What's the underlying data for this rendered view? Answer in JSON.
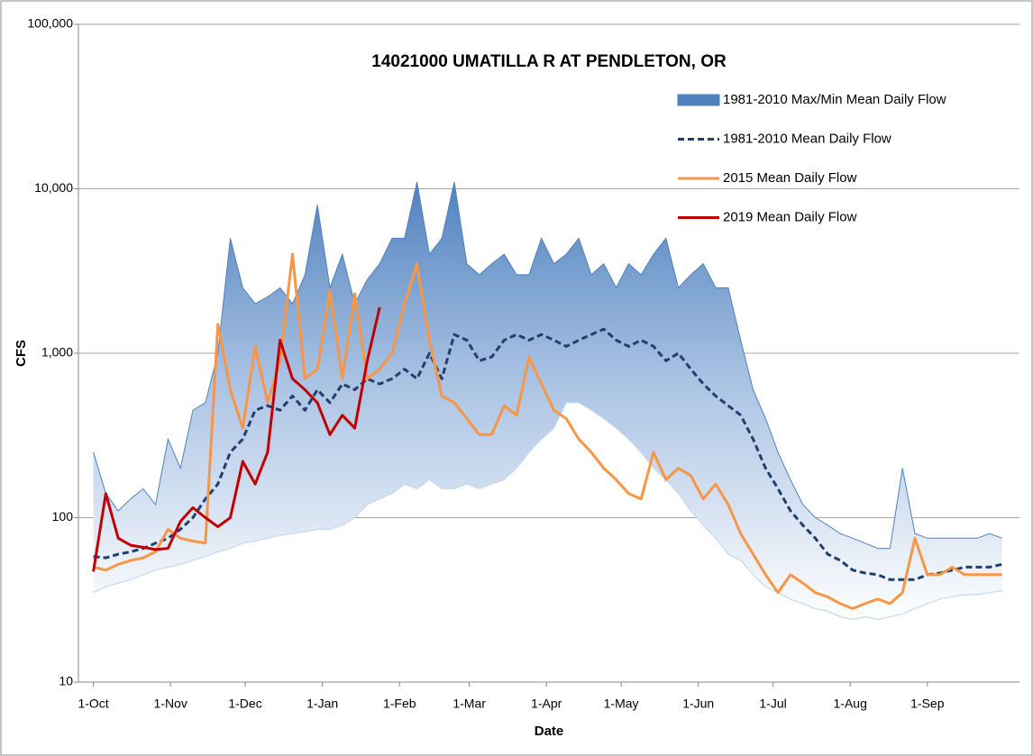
{
  "chart_data": {
    "type": "line",
    "title": "14021000 UMATILLA R AT PENDLETON, OR",
    "x_label": "Date",
    "y_label": "CFS",
    "log_scale": true,
    "grid": true,
    "legend": "upper right",
    "x": [
      0,
      5,
      10,
      15,
      20,
      25,
      30,
      35,
      40,
      45,
      50,
      55,
      60,
      65,
      70,
      75,
      80,
      85,
      90,
      95,
      100,
      105,
      110,
      115,
      120,
      125,
      130,
      135,
      140,
      145,
      150,
      155,
      160,
      165,
      170,
      175,
      180,
      185,
      190,
      195,
      200,
      205,
      210,
      215,
      220,
      225,
      230,
      235,
      240,
      245,
      250,
      255,
      260,
      265,
      270,
      275,
      280,
      285,
      290,
      295,
      300,
      305,
      310,
      315,
      320,
      325,
      330,
      335,
      340,
      345,
      350,
      355,
      360,
      365
    ],
    "xlim": [
      -6,
      372
    ],
    "xticks": [
      {
        "value": 0,
        "label": "1-Oct"
      },
      {
        "value": 31,
        "label": "1-Nov"
      },
      {
        "value": 61,
        "label": "1-Dec"
      },
      {
        "value": 92,
        "label": "1-Jan"
      },
      {
        "value": 123,
        "label": "1-Feb"
      },
      {
        "value": 151,
        "label": "1-Mar"
      },
      {
        "value": 182,
        "label": "1-Apr"
      },
      {
        "value": 212,
        "label": "1-May"
      },
      {
        "value": 243,
        "label": "1-Jun"
      },
      {
        "value": 273,
        "label": "1-Jul"
      },
      {
        "value": 304,
        "label": "1-Aug"
      },
      {
        "value": 335,
        "label": "1-Sep"
      }
    ],
    "ylim": [
      10,
      100000
    ],
    "yticks": [
      10,
      100,
      {
        "value": 1000,
        "label": "1,000"
      },
      {
        "value": 10000,
        "label": "10,000"
      },
      {
        "value": 100000,
        "label": "100,000"
      }
    ],
    "series": [
      {
        "name": "1981-2010 Max/Min Mean Daily Flow",
        "color": "#4f81bd",
        "style": "band",
        "values": [
          250,
          140,
          110,
          130,
          150,
          120,
          300,
          200,
          450,
          500,
          1000,
          5000,
          2500,
          2000,
          2200,
          2500,
          2000,
          3000,
          8000,
          2500,
          4000,
          2000,
          2800,
          3500,
          5000,
          5000,
          11000,
          4000,
          5000,
          11000,
          3500,
          3000,
          3500,
          4000,
          3000,
          3000,
          5000,
          3500,
          4000,
          5000,
          3000,
          3500,
          2500,
          3500,
          3000,
          4000,
          5000,
          2500,
          3000,
          3500,
          2500,
          2500,
          1200,
          600,
          400,
          250,
          170,
          120,
          100,
          90,
          80,
          75,
          70,
          65,
          65,
          200,
          80,
          75,
          75,
          75,
          75,
          75,
          80,
          75
        ],
        "min": [
          35,
          38,
          40,
          42,
          45,
          48,
          50,
          52,
          55,
          58,
          62,
          65,
          70,
          72,
          75,
          78,
          80,
          82,
          85,
          85,
          90,
          100,
          120,
          130,
          140,
          160,
          150,
          170,
          150,
          150,
          160,
          150,
          160,
          170,
          200,
          250,
          300,
          350,
          500,
          500,
          450,
          400,
          350,
          300,
          250,
          200,
          170,
          140,
          110,
          90,
          75,
          60,
          55,
          45,
          38,
          35,
          32,
          30,
          28,
          27,
          25,
          24,
          25,
          24,
          25,
          26,
          28,
          30,
          32,
          33,
          34,
          34,
          35,
          36
        ]
      },
      {
        "name": "1981-2010 Mean Daily Flow",
        "color": "#1f3f6e",
        "style": "dashed",
        "values": [
          58,
          57,
          60,
          62,
          65,
          70,
          75,
          85,
          100,
          130,
          160,
          250,
          300,
          450,
          480,
          450,
          550,
          450,
          600,
          500,
          650,
          600,
          700,
          650,
          700,
          800,
          700,
          1000,
          700,
          1300,
          1200,
          900,
          950,
          1200,
          1300,
          1200,
          1300,
          1200,
          1100,
          1200,
          1300,
          1400,
          1200,
          1100,
          1200,
          1100,
          900,
          1000,
          800,
          650,
          550,
          480,
          420,
          300,
          200,
          150,
          110,
          90,
          75,
          60,
          55,
          48,
          46,
          45,
          42,
          42,
          42,
          45,
          46,
          48,
          50,
          50,
          50,
          52
        ]
      },
      {
        "name": "2015 Mean Daily Flow",
        "color": "#f79646",
        "style": "solid",
        "values": [
          50,
          48,
          52,
          55,
          57,
          62,
          85,
          75,
          72,
          70,
          1500,
          600,
          350,
          1100,
          500,
          900,
          4000,
          700,
          800,
          2400,
          700,
          2300,
          700,
          800,
          1000,
          2000,
          3500,
          1200,
          550,
          500,
          400,
          320,
          320,
          480,
          420,
          950,
          650,
          450,
          400,
          300,
          250,
          200,
          170,
          140,
          130,
          250,
          170,
          200,
          180,
          130,
          160,
          120,
          80,
          60,
          45,
          35,
          45,
          40,
          35,
          33,
          30,
          28,
          30,
          32,
          30,
          35,
          75,
          45,
          45,
          50,
          45,
          45,
          45,
          45
        ]
      },
      {
        "name": "2019 Mean Daily Flow",
        "color": "#c00000",
        "style": "solid",
        "values": [
          47,
          140,
          75,
          68,
          66,
          64,
          65,
          95,
          115,
          100,
          88,
          100,
          220,
          160,
          250,
          1200,
          700,
          600,
          500,
          320,
          420,
          350,
          900,
          1900,
          null,
          null,
          null,
          null,
          null,
          null,
          null,
          null,
          null,
          null,
          null,
          null,
          null,
          null,
          null,
          null,
          null,
          null,
          null,
          null,
          null,
          null,
          null,
          null,
          null,
          null,
          null,
          null,
          null,
          null,
          null,
          null,
          null,
          null,
          null,
          null,
          null,
          null,
          null,
          null,
          null,
          null,
          null,
          null,
          null,
          null,
          null,
          null,
          null,
          null
        ]
      }
    ]
  }
}
